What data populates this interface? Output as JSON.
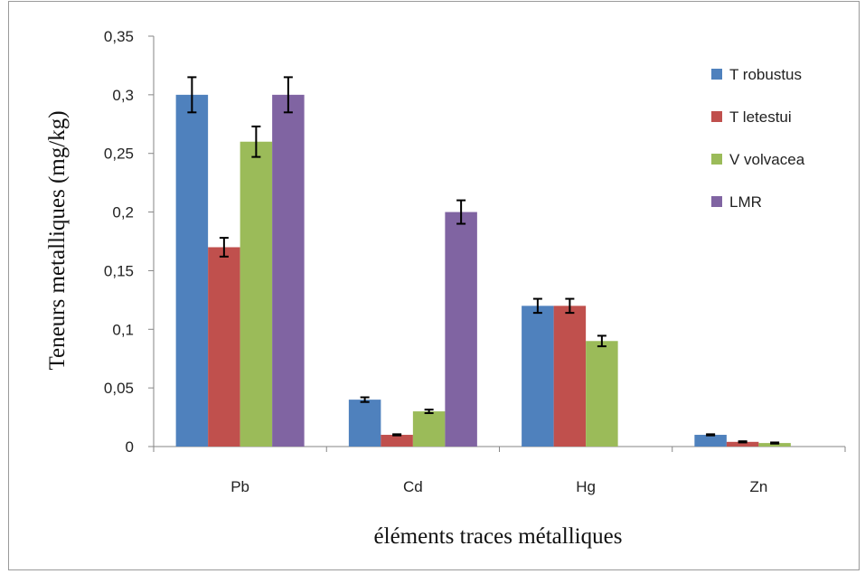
{
  "chart_data": {
    "type": "bar",
    "title": "",
    "xlabel": "éléments traces métalliques",
    "ylabel": "Teneurs metalliques (mg/kg)",
    "categories": [
      "Pb",
      "Cd",
      "Hg",
      "Zn"
    ],
    "ylim": [
      0,
      0.35
    ],
    "yticks": [
      0,
      0.05,
      0.1,
      0.15,
      0.2,
      0.25,
      0.3,
      0.35
    ],
    "ytick_labels": [
      "0",
      "0,05",
      "0,1",
      "0,15",
      "0,2",
      "0,25",
      "0,3",
      "0,35"
    ],
    "grid": false,
    "legend_position": "right",
    "series": [
      {
        "name": "T robustus",
        "color": "#4f81bd",
        "values": [
          0.3,
          0.04,
          0.12,
          0.01
        ],
        "errors": [
          0.015,
          0.002,
          0.006,
          0.0005
        ]
      },
      {
        "name": "T letestui",
        "color": "#c0504d",
        "values": [
          0.17,
          0.01,
          0.12,
          0.004
        ],
        "errors": [
          0.008,
          0.0005,
          0.006,
          0.0005
        ]
      },
      {
        "name": "V volvacea",
        "color": "#9bbb59",
        "values": [
          0.26,
          0.03,
          0.09,
          0.003
        ],
        "errors": [
          0.013,
          0.0015,
          0.0045,
          0.0005
        ]
      },
      {
        "name": "LMR",
        "color": "#8064a2",
        "values": [
          0.3,
          0.2,
          0,
          0
        ],
        "errors": [
          0.015,
          0.01,
          0,
          0
        ]
      }
    ]
  }
}
